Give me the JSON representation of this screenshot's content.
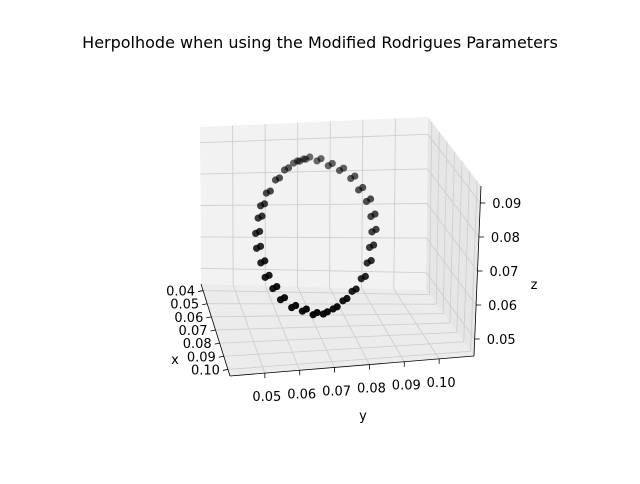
{
  "chart_data": {
    "type": "scatter",
    "projection": "3d",
    "title": "Herpolhode when using the Modified Rodrigues Parameters",
    "xlabel": "x",
    "ylabel": "y",
    "zlabel": "z",
    "x_ticks": [
      "0.04",
      "0.05",
      "0.06",
      "0.07",
      "0.08",
      "0.09",
      "0.10"
    ],
    "y_ticks": [
      "0.05",
      "0.06",
      "0.07",
      "0.08",
      "0.09",
      "0.10"
    ],
    "z_ticks": [
      "0.05",
      "0.06",
      "0.07",
      "0.08",
      "0.09"
    ],
    "xlim": [
      0.035,
      0.105
    ],
    "ylim": [
      0.04,
      0.11
    ],
    "zlim": [
      0.045,
      0.095
    ],
    "grid": true,
    "marker_color": "#000000",
    "pane_color": "#f2f2f2",
    "series": [
      {
        "description": "closed loop of points (herpolhode) traced twice",
        "points": [
          [
            0.056,
            0.07,
            0.093
          ],
          [
            0.058,
            0.073,
            0.093
          ],
          [
            0.06,
            0.076,
            0.092
          ],
          [
            0.062,
            0.079,
            0.091
          ],
          [
            0.064,
            0.082,
            0.089
          ],
          [
            0.066,
            0.084,
            0.086
          ],
          [
            0.068,
            0.086,
            0.083
          ],
          [
            0.07,
            0.087,
            0.079
          ],
          [
            0.072,
            0.087,
            0.075
          ],
          [
            0.074,
            0.086,
            0.071
          ],
          [
            0.076,
            0.085,
            0.067
          ],
          [
            0.078,
            0.083,
            0.063
          ],
          [
            0.08,
            0.08,
            0.06
          ],
          [
            0.082,
            0.077,
            0.058
          ],
          [
            0.083,
            0.074,
            0.056
          ],
          [
            0.084,
            0.071,
            0.055
          ],
          [
            0.084,
            0.068,
            0.055
          ],
          [
            0.083,
            0.065,
            0.056
          ],
          [
            0.082,
            0.062,
            0.057
          ],
          [
            0.08,
            0.059,
            0.059
          ],
          [
            0.078,
            0.057,
            0.062
          ],
          [
            0.076,
            0.055,
            0.065
          ],
          [
            0.074,
            0.054,
            0.069
          ],
          [
            0.072,
            0.053,
            0.073
          ],
          [
            0.07,
            0.053,
            0.077
          ],
          [
            0.068,
            0.054,
            0.081
          ],
          [
            0.066,
            0.055,
            0.084
          ],
          [
            0.064,
            0.057,
            0.087
          ],
          [
            0.062,
            0.06,
            0.09
          ],
          [
            0.06,
            0.063,
            0.092
          ],
          [
            0.058,
            0.066,
            0.093
          ],
          [
            0.057,
            0.068,
            0.093
          ],
          [
            0.055,
            0.069,
            0.092
          ],
          [
            0.057,
            0.072,
            0.092
          ],
          [
            0.059,
            0.075,
            0.091
          ],
          [
            0.061,
            0.078,
            0.09
          ],
          [
            0.063,
            0.081,
            0.088
          ],
          [
            0.065,
            0.083,
            0.085
          ],
          [
            0.067,
            0.085,
            0.082
          ],
          [
            0.069,
            0.086,
            0.078
          ],
          [
            0.071,
            0.086,
            0.074
          ],
          [
            0.073,
            0.085,
            0.07
          ],
          [
            0.075,
            0.084,
            0.066
          ],
          [
            0.077,
            0.082,
            0.062
          ],
          [
            0.079,
            0.079,
            0.059
          ],
          [
            0.081,
            0.076,
            0.057
          ],
          [
            0.082,
            0.073,
            0.055
          ],
          [
            0.083,
            0.07,
            0.054
          ],
          [
            0.083,
            0.067,
            0.054
          ],
          [
            0.082,
            0.064,
            0.055
          ],
          [
            0.081,
            0.061,
            0.056
          ],
          [
            0.079,
            0.058,
            0.058
          ],
          [
            0.077,
            0.056,
            0.061
          ],
          [
            0.075,
            0.054,
            0.064
          ],
          [
            0.073,
            0.053,
            0.068
          ],
          [
            0.071,
            0.052,
            0.072
          ],
          [
            0.069,
            0.052,
            0.076
          ],
          [
            0.067,
            0.053,
            0.08
          ],
          [
            0.065,
            0.054,
            0.083
          ],
          [
            0.063,
            0.056,
            0.086
          ],
          [
            0.061,
            0.059,
            0.089
          ],
          [
            0.059,
            0.062,
            0.091
          ],
          [
            0.057,
            0.065,
            0.092
          ],
          [
            0.056,
            0.067,
            0.092
          ]
        ]
      }
    ]
  }
}
